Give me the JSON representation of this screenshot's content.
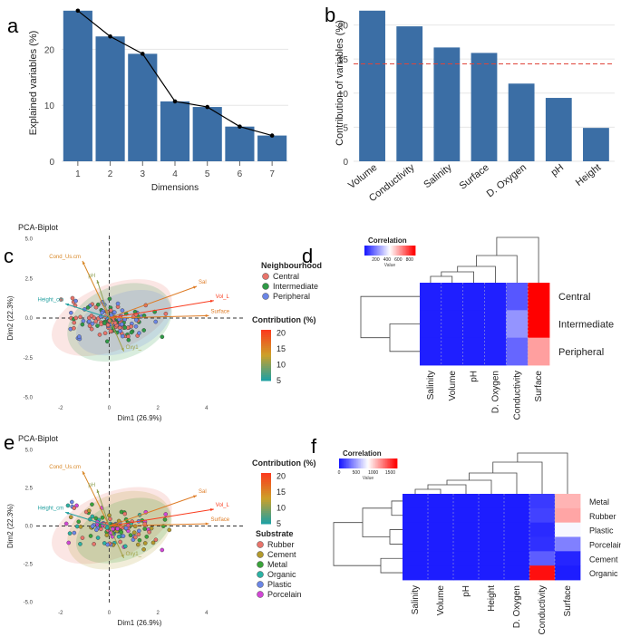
{
  "panel_labels": [
    "a",
    "b",
    "c",
    "d",
    "e",
    "f"
  ],
  "colors": {
    "bar": "#3b6ea5",
    "grid": "#e6e6e6",
    "line": "#000000",
    "ref_line": "#e0443a",
    "central": "#e8746b",
    "intermediate": "#2f9a46",
    "peripheral": "#6b86e6",
    "rubber": "#e8746b",
    "cement": "#b39a2c",
    "metal": "#3aa33a",
    "organic": "#2bb2a4",
    "plastic": "#6b86e6",
    "porcelain": "#d247d6",
    "heat_low": "#1a1aff",
    "heat_mid": "#ffffff",
    "heat_high": "#ff0000"
  },
  "chart_data": [
    {
      "id": "a",
      "type": "bar",
      "categories": [
        "1",
        "2",
        "3",
        "4",
        "5",
        "6",
        "7"
      ],
      "values": [
        26.9,
        22.3,
        19.2,
        10.7,
        9.7,
        6.2,
        4.6
      ],
      "line_values": [
        26.9,
        22.3,
        19.2,
        10.7,
        9.7,
        6.2,
        4.6
      ],
      "yticks": [
        "0",
        "10",
        "20"
      ],
      "ylim": [
        0,
        28
      ],
      "xlabel": "Dimensions",
      "ylabel": "Explained variables (%)"
    },
    {
      "id": "b",
      "type": "bar",
      "categories": [
        "Volume",
        "Conductivity",
        "Salinity",
        "Surface",
        "D. Oxygen",
        "pH",
        "Height"
      ],
      "values": [
        22.1,
        19.8,
        16.7,
        15.9,
        11.4,
        9.3,
        4.9
      ],
      "reference_line": 14.3,
      "yticks": [
        "0",
        "5",
        "10",
        "15",
        "20"
      ],
      "ylim": [
        0,
        23
      ],
      "ylabel": "Contribution of variables (%)"
    },
    {
      "id": "c",
      "type": "scatter",
      "title": "PCA-Biplot",
      "xlabel": "Dim1 (26.9%)",
      "ylabel": "Dim2 (22.3%)",
      "xticks": [
        "-2",
        "0",
        "2",
        "4"
      ],
      "yticks": [
        "5.0",
        "2.5",
        "0.0",
        "-2.5",
        "-5.0"
      ],
      "xlim": [
        -3,
        5.5
      ],
      "ylim": [
        -5.2,
        5.2
      ],
      "vectors": [
        {
          "label": "Cond_Us.cm",
          "x": -1.1,
          "y": 3.6,
          "contrib": 15
        },
        {
          "label": "pH",
          "x": -0.5,
          "y": 2.4,
          "contrib": 10
        },
        {
          "label": "Sal",
          "x": 3.6,
          "y": 2.0,
          "contrib": 16
        },
        {
          "label": "Vol_L",
          "x": 4.3,
          "y": 1.1,
          "contrib": 21
        },
        {
          "label": "Height_cm",
          "x": -1.8,
          "y": 0.9,
          "contrib": 5
        },
        {
          "label": "Surface",
          "x": 4.1,
          "y": 0.15,
          "contrib": 16
        },
        {
          "label": "Oxy1_",
          "x": 0.6,
          "y": -2.1,
          "contrib": 11
        }
      ],
      "legend_title": "Neighbourhood",
      "legend": [
        "Central",
        "Intermediate",
        "Peripheral"
      ],
      "gradient_title": "Contribution (%)",
      "gradient_ticks": [
        "20",
        "15",
        "10",
        "5"
      ]
    },
    {
      "id": "d",
      "type": "heatmap",
      "legend_title": "Correlation",
      "legend_ticks": [
        "200",
        "400",
        "600",
        "800"
      ],
      "legend_sub": "Value",
      "rows": [
        "Central",
        "Intermediate",
        "Peripheral"
      ],
      "columns": [
        "Salinity",
        "Volume",
        "pH",
        "D. Oxygen",
        "Conductivity",
        "Surface"
      ],
      "values": [
        [
          10,
          10,
          10,
          12,
          120,
          900
        ],
        [
          10,
          10,
          10,
          12,
          240,
          900
        ],
        [
          10,
          10,
          10,
          12,
          150,
          620
        ]
      ],
      "vmax": 900
    },
    {
      "id": "e",
      "type": "scatter",
      "title": "PCA-Biplot",
      "xlabel": "Dim1 (26.9%)",
      "ylabel": "Dim2 (22.3%)",
      "xticks": [
        "-2",
        "0",
        "2",
        "4"
      ],
      "yticks": [
        "5.0",
        "2.5",
        "0.0",
        "-2.5",
        "-5.0"
      ],
      "xlim": [
        -3,
        5.5
      ],
      "ylim": [
        -5.2,
        5.2
      ],
      "vectors": [
        {
          "label": "Cond_Us.cm",
          "x": -1.1,
          "y": 3.6,
          "contrib": 15
        },
        {
          "label": "pH",
          "x": -0.5,
          "y": 2.4,
          "contrib": 10
        },
        {
          "label": "Sal",
          "x": 3.6,
          "y": 2.0,
          "contrib": 16
        },
        {
          "label": "Vol_L",
          "x": 4.3,
          "y": 1.1,
          "contrib": 21
        },
        {
          "label": "Height_cm",
          "x": -1.8,
          "y": 0.9,
          "contrib": 5
        },
        {
          "label": "Surface",
          "x": 4.1,
          "y": 0.15,
          "contrib": 16
        },
        {
          "label": "Oxy1_",
          "x": 0.6,
          "y": -2.1,
          "contrib": 11
        }
      ],
      "gradient_title": "Contribution (%)",
      "gradient_ticks": [
        "20",
        "15",
        "10",
        "5"
      ],
      "legend_title": "Substrate",
      "legend": [
        "Rubber",
        "Cement",
        "Metal",
        "Organic",
        "Plastic",
        "Porcelain"
      ]
    },
    {
      "id": "f",
      "type": "heatmap",
      "legend_title": "Correlation",
      "legend_ticks": [
        "0",
        "500",
        "1000",
        "1500"
      ],
      "legend_sub": "Value",
      "rows": [
        "Metal",
        "Rubber",
        "Plastic",
        "Porcelain",
        "Cement",
        "Organic"
      ],
      "columns": [
        "Salinity",
        "Volume",
        "pH",
        "Height",
        "D. Oxygen",
        "Conductivity",
        "Surface"
      ],
      "values": [
        [
          10,
          10,
          10,
          10,
          10,
          120,
          1100
        ],
        [
          10,
          10,
          10,
          10,
          10,
          150,
          1150
        ],
        [
          10,
          10,
          10,
          10,
          10,
          60,
          820
        ],
        [
          10,
          10,
          10,
          10,
          10,
          80,
          380
        ],
        [
          10,
          10,
          10,
          10,
          10,
          250,
          40
        ],
        [
          10,
          10,
          10,
          10,
          10,
          1650,
          10
        ]
      ],
      "vmax": 1700
    }
  ]
}
